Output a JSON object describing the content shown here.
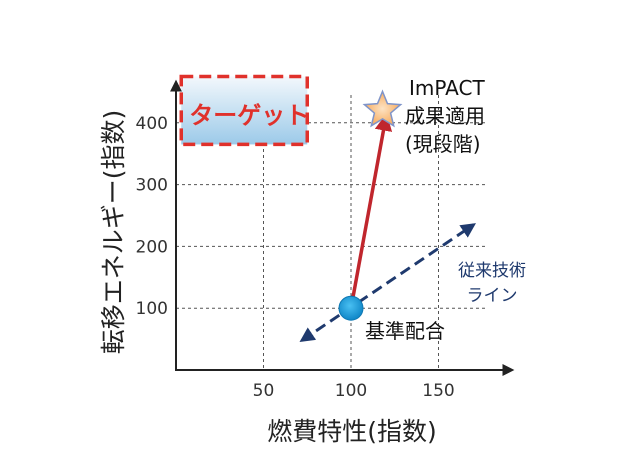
{
  "chart_data": {
    "type": "scatter",
    "xlabel": "燃費特性(指数)",
    "ylabel": "転移エネルギー(指数)",
    "x_ticks": [
      50,
      100,
      150
    ],
    "y_ticks": [
      100,
      200,
      300,
      400
    ],
    "xlim": [
      0,
      180
    ],
    "ylim": [
      0,
      500
    ],
    "grid": true,
    "points": [
      {
        "id": "baseline",
        "x": 100,
        "y": 100,
        "label": "基準配合",
        "marker": "circle"
      },
      {
        "id": "impact",
        "x": 118,
        "y": 420,
        "label_lines": [
          "ImPACT",
          "成果適用",
          "(現段階)"
        ],
        "marker": "star"
      }
    ],
    "target_region": {
      "x": [
        3,
        75
      ],
      "y": [
        365,
        475
      ],
      "label": "ターゲット"
    },
    "conventional_line": {
      "from": [
        72,
        48
      ],
      "to": [
        170,
        235
      ],
      "label_lines": [
        "従来技術",
        "ライン"
      ]
    },
    "improvement_arrow": {
      "from": [
        100,
        100
      ],
      "to": [
        120,
        410
      ]
    },
    "colors": {
      "target_border": "#e0312b",
      "target_fill_top": "#f3f8fc",
      "target_fill_bottom": "#9ccae9",
      "arrow": "#c0262d",
      "line": "#1f3a6e",
      "baseline_point": "#1a9ad8",
      "star_fill": "#f6b26b",
      "star_stroke": "#7f94c9"
    }
  }
}
